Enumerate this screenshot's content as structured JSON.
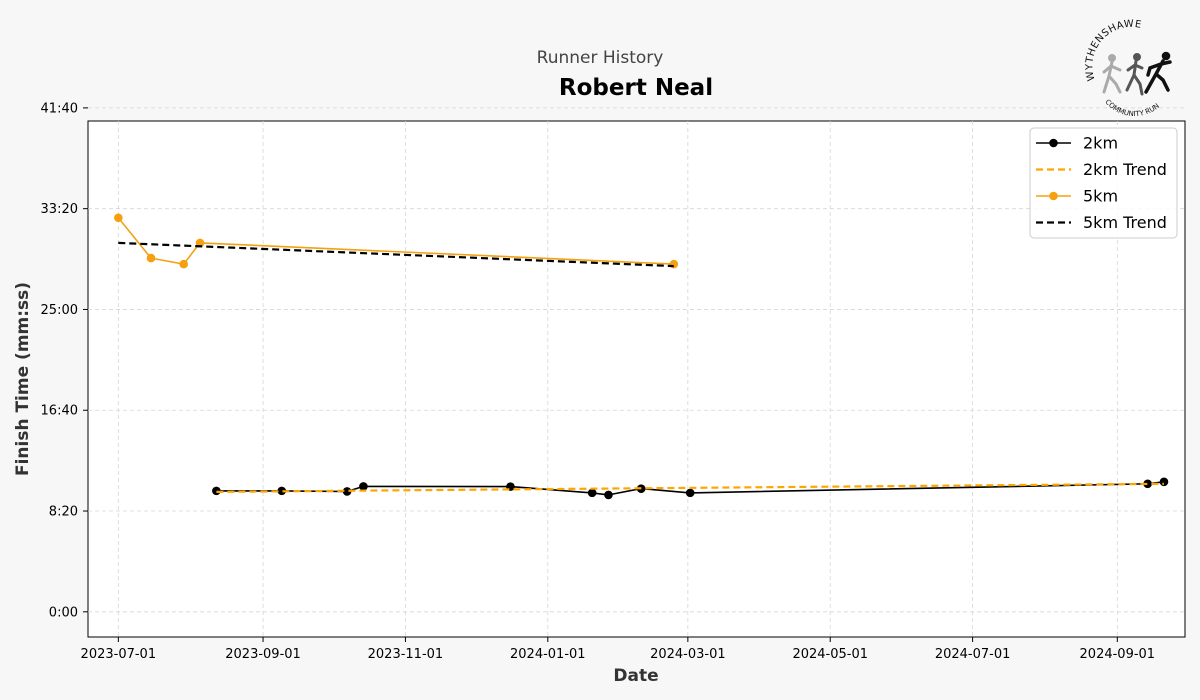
{
  "header": {
    "subtitle": "Runner History",
    "title": "Robert Neal"
  },
  "logo": {
    "top_text": "WYTHENSHAWE",
    "bottom_text": "COMMUNITY RUN"
  },
  "chart_data": {
    "type": "line",
    "xlabel": "Date",
    "ylabel": "Finish Time (mm:ss)",
    "xlim": [
      "2023-06-18",
      "2024-09-30"
    ],
    "ylim_seconds": [
      -125,
      2435
    ],
    "x_ticks": [
      "2023-07-01",
      "2023-09-01",
      "2023-11-01",
      "2024-01-01",
      "2024-03-01",
      "2024-05-01",
      "2024-07-01",
      "2024-09-01"
    ],
    "y_ticks": [
      {
        "seconds": 0,
        "label": "0:00"
      },
      {
        "seconds": 500,
        "label": "8:20"
      },
      {
        "seconds": 1000,
        "label": "16:40"
      },
      {
        "seconds": 1500,
        "label": "25:00"
      },
      {
        "seconds": 2000,
        "label": "33:20"
      },
      {
        "seconds": 2500,
        "label": "41:40"
      }
    ],
    "grid": true,
    "legend_position": "top-right",
    "series": [
      {
        "name": "2km",
        "color": "#000000",
        "style": "solid-marker",
        "points": [
          {
            "date": "2023-08-12",
            "seconds": 600
          },
          {
            "date": "2023-09-09",
            "seconds": 600
          },
          {
            "date": "2023-10-07",
            "seconds": 597
          },
          {
            "date": "2023-10-14",
            "seconds": 622
          },
          {
            "date": "2023-12-16",
            "seconds": 621
          },
          {
            "date": "2024-01-20",
            "seconds": 590
          },
          {
            "date": "2024-01-27",
            "seconds": 580
          },
          {
            "date": "2024-02-10",
            "seconds": 611
          },
          {
            "date": "2024-03-02",
            "seconds": 590
          },
          {
            "date": "2024-09-14",
            "seconds": 635
          },
          {
            "date": "2024-09-21",
            "seconds": 645
          }
        ]
      },
      {
        "name": "2km Trend",
        "color": "#ffa500",
        "style": "dashed",
        "points": [
          {
            "date": "2023-08-12",
            "seconds": 595
          },
          {
            "date": "2024-09-21",
            "seconds": 635
          }
        ]
      },
      {
        "name": "5km",
        "color": "#f5a010",
        "style": "solid-marker",
        "points": [
          {
            "date": "2023-07-01",
            "seconds": 1955
          },
          {
            "date": "2023-07-15",
            "seconds": 1755
          },
          {
            "date": "2023-07-29",
            "seconds": 1725
          },
          {
            "date": "2023-08-05",
            "seconds": 1830
          },
          {
            "date": "2024-02-24",
            "seconds": 1725
          }
        ]
      },
      {
        "name": "5km Trend",
        "color": "#000000",
        "style": "dashed",
        "points": [
          {
            "date": "2023-07-01",
            "seconds": 1830
          },
          {
            "date": "2024-02-24",
            "seconds": 1715
          }
        ]
      }
    ]
  }
}
